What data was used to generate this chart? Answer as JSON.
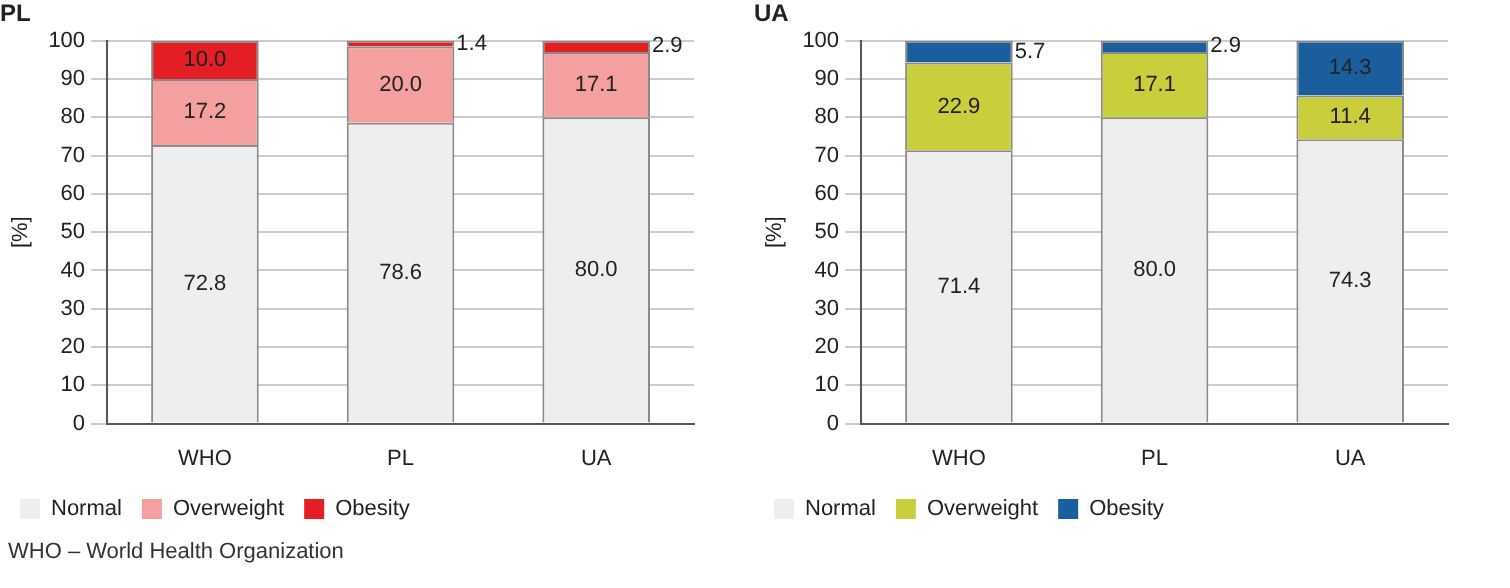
{
  "chart_data": [
    {
      "type": "bar",
      "title": "PL",
      "ylabel": "[%]",
      "categories": [
        "WHO",
        "PL",
        "UA"
      ],
      "stacked": true,
      "ylim": [
        0,
        100
      ],
      "yticks": [
        0,
        10,
        20,
        30,
        40,
        50,
        60,
        70,
        80,
        90,
        100
      ],
      "grid": "y",
      "legend": "bottom left",
      "series": [
        {
          "name": "Normal",
          "color": "#eeeeee",
          "values": [
            72.8,
            78.6,
            80.0
          ],
          "value_labels": [
            "72.8",
            "78.6",
            "80.0"
          ]
        },
        {
          "name": "Overweight",
          "color": "#f4a0a0",
          "values": [
            17.2,
            20.0,
            17.1
          ],
          "value_labels": [
            "17.2",
            "20.0",
            "17.1"
          ]
        },
        {
          "name": "Obesity",
          "color": "#e31e24",
          "values": [
            10.0,
            1.4,
            2.9
          ],
          "value_labels": [
            "10.0",
            "1.4",
            "2.9"
          ]
        }
      ],
      "annotations": [
        "WHO – World Health Organization"
      ]
    },
    {
      "type": "bar",
      "title": "UA",
      "ylabel": "[%]",
      "categories": [
        "WHO",
        "PL",
        "UA"
      ],
      "stacked": true,
      "ylim": [
        0,
        100
      ],
      "yticks": [
        0,
        10,
        20,
        30,
        40,
        50,
        60,
        70,
        80,
        90,
        100
      ],
      "grid": "y",
      "legend": "bottom left",
      "series": [
        {
          "name": "Normal",
          "color": "#eeeeee",
          "values": [
            71.4,
            80.0,
            74.3
          ],
          "value_labels": [
            "71.4",
            "80.0",
            "74.3"
          ]
        },
        {
          "name": "Overweight",
          "color": "#c9cf3c",
          "values": [
            22.9,
            17.1,
            11.4
          ],
          "value_labels": [
            "22.9",
            "17.1",
            "11.4"
          ]
        },
        {
          "name": "Obesity",
          "color": "#1a5e9e",
          "values": [
            5.7,
            2.9,
            14.3
          ],
          "value_labels": [
            "5.7",
            "2.9",
            "14.3"
          ]
        }
      ]
    }
  ]
}
